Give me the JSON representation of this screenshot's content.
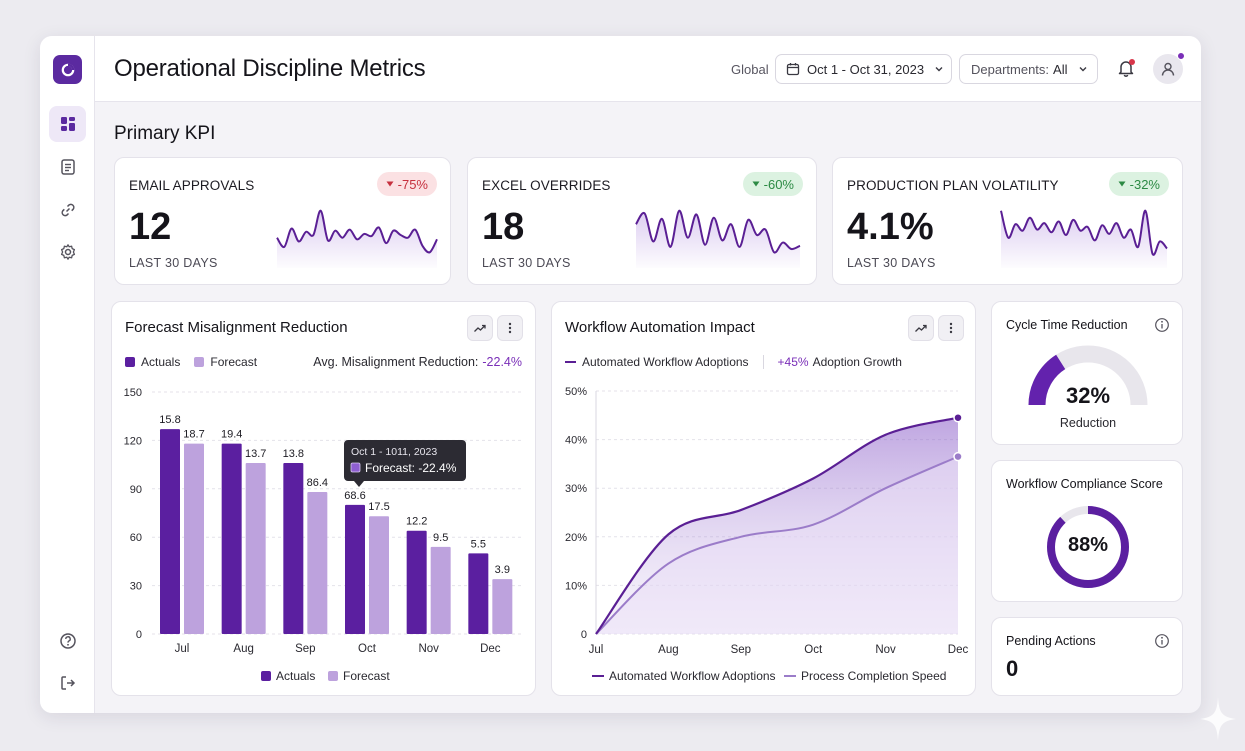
{
  "header": {
    "title": "Operational Discipline Metrics",
    "global_label": "Global",
    "date_range": "Oct 1 - Oct 31, 2023",
    "departments_label": "Departments:",
    "departments_value": "All"
  },
  "section_title": "Primary KPI",
  "kpis": [
    {
      "title": "EMAIL APPROVALS",
      "badge": "-75%",
      "badge_tone": "red",
      "value": "12",
      "sub": "LAST 30 DAYS",
      "spark": [
        0.55,
        0.72,
        0.38,
        0.62,
        0.44,
        0.5,
        0.05,
        0.6,
        0.42,
        0.55,
        0.4,
        0.58,
        0.48,
        0.52,
        0.36,
        0.65,
        0.42,
        0.5,
        0.55,
        0.4,
        0.7,
        0.82,
        0.58
      ]
    },
    {
      "title": "EXCEL OVERRIDES",
      "badge": "-60%",
      "badge_tone": "green",
      "value": "18",
      "sub": "LAST 30 DAYS",
      "spark": [
        0.3,
        0.1,
        0.62,
        0.2,
        0.72,
        0.05,
        0.55,
        0.12,
        0.68,
        0.18,
        0.6,
        0.3,
        0.72,
        0.22,
        0.5,
        0.4,
        0.82,
        0.64,
        0.76,
        0.7
      ]
    },
    {
      "title": "PRODUCTION PLAN VOLATILITY",
      "badge": "-32%",
      "badge_tone": "green",
      "value": "4.1%",
      "sub": "LAST 30 DAYS",
      "spark": [
        0.05,
        0.55,
        0.3,
        0.42,
        0.18,
        0.4,
        0.28,
        0.45,
        0.25,
        0.5,
        0.22,
        0.42,
        0.35,
        0.6,
        0.32,
        0.48,
        0.28,
        0.55,
        0.4,
        0.72,
        0.05,
        0.85,
        0.62,
        0.75
      ]
    }
  ],
  "forecast_panel": {
    "title": "Forecast Misalignment Reduction",
    "trend_icon": "trend-up-icon",
    "more_icon": "more-vertical-icon",
    "legend_actuals": "Actuals",
    "legend_forecast": "Forecast",
    "avg_label": "Avg. Misalignment Reduction:",
    "avg_value": "-22.4%",
    "tooltip_title": "Oct 1 - 1011, 2023",
    "tooltip_label": "Forecast:",
    "tooltip_value": "-22.4%"
  },
  "workflow_panel": {
    "title": "Workflow Automation Impact",
    "legend_line": "Automated Workflow Adoptions",
    "growth_value": "+45%",
    "growth_label": "Adoption Growth",
    "bottom_legend_1": "Automated Workflow Adoptions",
    "bottom_legend_2": "Process Completion Speed"
  },
  "cycle_card": {
    "title": "Cycle Time Reduction",
    "value": "32%",
    "sub": "Reduction",
    "fraction": 0.32
  },
  "compliance_card": {
    "title": "Workflow Compliance Score",
    "value": "88%",
    "fraction": 0.88
  },
  "pending_card": {
    "title": "Pending Actions",
    "value": "0"
  },
  "colors": {
    "actuals": "#5b1fa0",
    "forecast": "#bda2dd",
    "line1": "#5a1f94",
    "line2": "#9b7cc9",
    "accent": "#7a2fb8"
  },
  "chart_data": [
    {
      "type": "bar",
      "categories": [
        "Jul",
        "Aug",
        "Sep",
        "Oct",
        "Nov",
        "Dec"
      ],
      "series": [
        {
          "name": "Actuals",
          "values": [
            127,
            118,
            106,
            80,
            64,
            50
          ]
        },
        {
          "name": "Forecast",
          "values": [
            118,
            106,
            88,
            73,
            54,
            34
          ]
        }
      ],
      "data_labels": {
        "Actuals": [
          "15.8",
          "19.4",
          "13.8",
          "68.6",
          "12.2",
          "5.5"
        ],
        "Forecast": [
          "18.7",
          "13.7",
          "86.4",
          "17.5",
          "9.5",
          "3.9"
        ]
      },
      "yticks": [
        0,
        30,
        60,
        90,
        120,
        150
      ],
      "ylim": [
        0,
        150
      ]
    },
    {
      "type": "area",
      "x": [
        "Jul",
        "Aug",
        "Sep",
        "Oct",
        "Nov",
        "Dec"
      ],
      "series": [
        {
          "name": "Automated Workflow Adoptions",
          "values": [
            0,
            20.5,
            25.5,
            32,
            41,
            44.5
          ]
        },
        {
          "name": "Process Completion Speed",
          "values": [
            0,
            14.5,
            20,
            22.5,
            30,
            36.5
          ]
        }
      ],
      "yticks": [
        "0",
        "10%",
        "20%",
        "30%",
        "40%",
        "50%"
      ],
      "ylim": [
        0,
        50
      ]
    }
  ]
}
